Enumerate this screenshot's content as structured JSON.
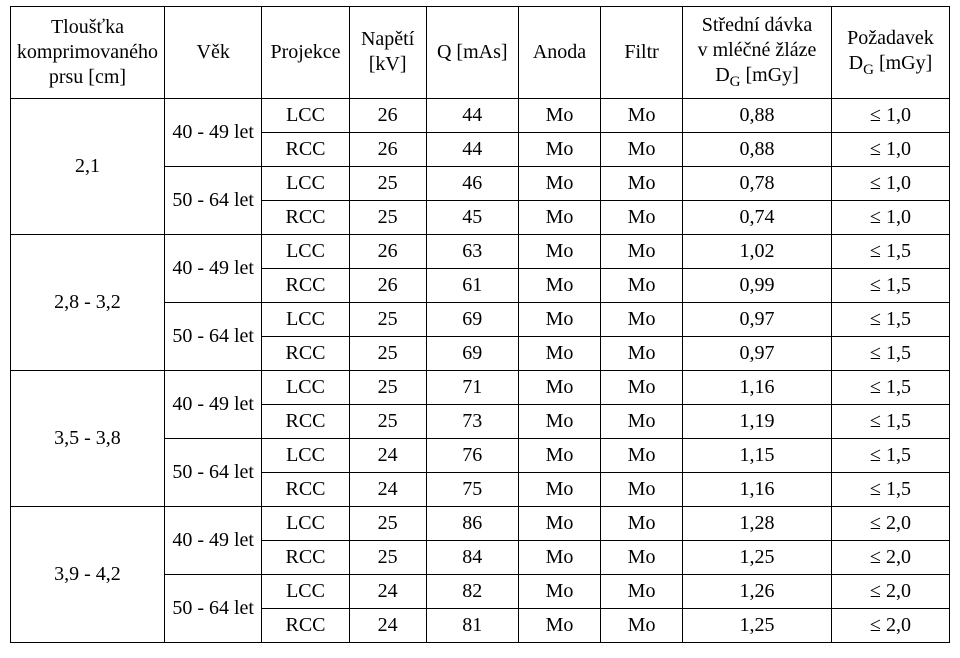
{
  "headers": {
    "thickness": "Tloušťka komprimovaného prsu [cm]",
    "age": "Věk",
    "projection": "Projekce",
    "voltage": "Napětí [kV]",
    "mas": "Q [mAs]",
    "anode": "Anoda",
    "filter": "Filtr",
    "dose_line1": "Střední dávka",
    "dose_line2": "v mléčné žláze",
    "dose_line3_pre": "D",
    "dose_line3_sub": "G",
    "dose_line3_post": " [mGy]",
    "req_line1": "Požadavek",
    "req_line2_pre": "D",
    "req_line2_sub": "G",
    "req_line2_post": " [mGy]"
  },
  "age_labels": {
    "a": "40 - 49 let",
    "b": "50 - 64 let"
  },
  "groups": [
    {
      "thickness": "2,1",
      "ages": [
        {
          "age_key": "a",
          "rows": [
            {
              "proj": "LCC",
              "kv": "26",
              "mas": "44",
              "anode": "Mo",
              "filter": "Mo",
              "dose": "0,88",
              "req": "≤ 1,0"
            },
            {
              "proj": "RCC",
              "kv": "26",
              "mas": "44",
              "anode": "Mo",
              "filter": "Mo",
              "dose": "0,88",
              "req": "≤ 1,0"
            }
          ]
        },
        {
          "age_key": "b",
          "rows": [
            {
              "proj": "LCC",
              "kv": "25",
              "mas": "46",
              "anode": "Mo",
              "filter": "Mo",
              "dose": "0,78",
              "req": "≤ 1,0"
            },
            {
              "proj": "RCC",
              "kv": "25",
              "mas": "45",
              "anode": "Mo",
              "filter": "Mo",
              "dose": "0,74",
              "req": "≤ 1,0"
            }
          ]
        }
      ]
    },
    {
      "thickness": "2,8 - 3,2",
      "ages": [
        {
          "age_key": "a",
          "rows": [
            {
              "proj": "LCC",
              "kv": "26",
              "mas": "63",
              "anode": "Mo",
              "filter": "Mo",
              "dose": "1,02",
              "req": "≤ 1,5"
            },
            {
              "proj": "RCC",
              "kv": "26",
              "mas": "61",
              "anode": "Mo",
              "filter": "Mo",
              "dose": "0,99",
              "req": "≤ 1,5"
            }
          ]
        },
        {
          "age_key": "b",
          "rows": [
            {
              "proj": "LCC",
              "kv": "25",
              "mas": "69",
              "anode": "Mo",
              "filter": "Mo",
              "dose": "0,97",
              "req": "≤ 1,5"
            },
            {
              "proj": "RCC",
              "kv": "25",
              "mas": "69",
              "anode": "Mo",
              "filter": "Mo",
              "dose": "0,97",
              "req": "≤ 1,5"
            }
          ]
        }
      ]
    },
    {
      "thickness": "3,5 - 3,8",
      "ages": [
        {
          "age_key": "a",
          "rows": [
            {
              "proj": "LCC",
              "kv": "25",
              "mas": "71",
              "anode": "Mo",
              "filter": "Mo",
              "dose": "1,16",
              "req": "≤ 1,5"
            },
            {
              "proj": "RCC",
              "kv": "25",
              "mas": "73",
              "anode": "Mo",
              "filter": "Mo",
              "dose": "1,19",
              "req": "≤ 1,5"
            }
          ]
        },
        {
          "age_key": "b",
          "rows": [
            {
              "proj": "LCC",
              "kv": "24",
              "mas": "76",
              "anode": "Mo",
              "filter": "Mo",
              "dose": "1,15",
              "req": "≤ 1,5"
            },
            {
              "proj": "RCC",
              "kv": "24",
              "mas": "75",
              "anode": "Mo",
              "filter": "Mo",
              "dose": "1,16",
              "req": "≤ 1,5"
            }
          ]
        }
      ]
    },
    {
      "thickness": "3,9 - 4,2",
      "ages": [
        {
          "age_key": "a",
          "rows": [
            {
              "proj": "LCC",
              "kv": "25",
              "mas": "86",
              "anode": "Mo",
              "filter": "Mo",
              "dose": "1,28",
              "req": "≤ 2,0"
            },
            {
              "proj": "RCC",
              "kv": "25",
              "mas": "84",
              "anode": "Mo",
              "filter": "Mo",
              "dose": "1,25",
              "req": "≤ 2,0"
            }
          ]
        },
        {
          "age_key": "b",
          "rows": [
            {
              "proj": "LCC",
              "kv": "24",
              "mas": "82",
              "anode": "Mo",
              "filter": "Mo",
              "dose": "1,26",
              "req": "≤ 2,0"
            },
            {
              "proj": "RCC",
              "kv": "24",
              "mas": "81",
              "anode": "Mo",
              "filter": "Mo",
              "dose": "1,25",
              "req": "≤ 2,0"
            }
          ]
        }
      ]
    }
  ]
}
